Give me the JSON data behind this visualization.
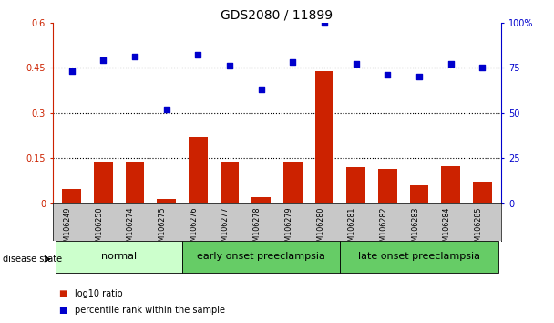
{
  "title": "GDS2080 / 11899",
  "samples": [
    "GSM106249",
    "GSM106250",
    "GSM106274",
    "GSM106275",
    "GSM106276",
    "GSM106277",
    "GSM106278",
    "GSM106279",
    "GSM106280",
    "GSM106281",
    "GSM106282",
    "GSM106283",
    "GSM106284",
    "GSM106285"
  ],
  "log10_ratio": [
    0.05,
    0.14,
    0.14,
    0.015,
    0.22,
    0.135,
    0.02,
    0.14,
    0.44,
    0.12,
    0.115,
    0.06,
    0.125,
    0.07
  ],
  "percentile_rank": [
    73,
    79,
    81,
    52,
    82,
    76,
    63,
    78,
    100,
    77,
    71,
    70,
    77,
    75
  ],
  "group_configs": [
    {
      "label": "normal",
      "start": 0,
      "end": 4,
      "color": "#ccffcc"
    },
    {
      "label": "early onset preeclampsia",
      "start": 4,
      "end": 9,
      "color": "#66cc66"
    },
    {
      "label": "late onset preeclampsia",
      "start": 9,
      "end": 14,
      "color": "#66cc66"
    }
  ],
  "bar_color": "#cc2200",
  "dot_color": "#0000cc",
  "ylim_left": [
    0,
    0.6
  ],
  "yticks_left": [
    0,
    0.15,
    0.3,
    0.45,
    0.6
  ],
  "ytick_labels_left": [
    "0",
    "0.15",
    "0.3",
    "0.45",
    "0.6"
  ],
  "ytick_labels_right": [
    "0",
    "25",
    "50",
    "75",
    "100%"
  ],
  "hlines": [
    0.15,
    0.3,
    0.45
  ],
  "disease_state_label": "disease state",
  "legend_bar": "log10 ratio",
  "legend_dot": "percentile rank within the sample",
  "title_fontsize": 10,
  "tick_fontsize": 7,
  "group_label_fontsize": 8,
  "bar_width": 0.6,
  "xtick_color": "#cccccc",
  "tick_label_color_left": "#cc2200",
  "tick_label_color_right": "#0000cc"
}
